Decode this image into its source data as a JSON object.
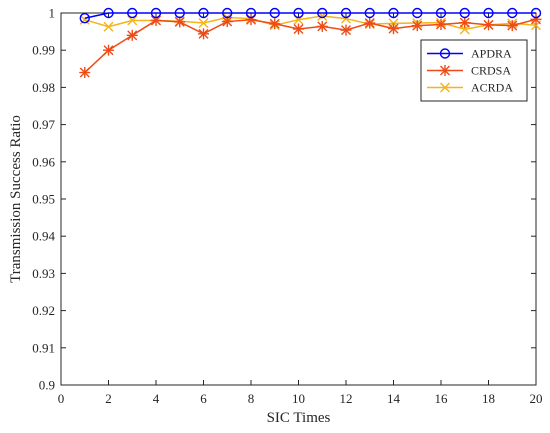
{
  "chart_data": {
    "type": "line",
    "xlabel": "SIC Times",
    "ylabel": "Transmission Success Ratio",
    "xlim": [
      0,
      20
    ],
    "ylim": [
      0.9,
      1.0
    ],
    "x_ticks": [
      0,
      2,
      4,
      6,
      8,
      10,
      12,
      14,
      16,
      18,
      20
    ],
    "x_tick_labels": [
      "0",
      "2",
      "4",
      "6",
      "8",
      "10",
      "12",
      "14",
      "16",
      "18",
      "20"
    ],
    "y_ticks": [
      0.9,
      0.91,
      0.92,
      0.93,
      0.94,
      0.95,
      0.96,
      0.97,
      0.98,
      0.99,
      1.0
    ],
    "y_tick_labels": [
      "0.9",
      "0.91",
      "0.92",
      "0.93",
      "0.94",
      "0.95",
      "0.96",
      "0.97",
      "0.98",
      "0.99",
      "1"
    ],
    "grid": false,
    "legend_position": "top-right",
    "x": [
      1,
      2,
      3,
      4,
      5,
      6,
      7,
      8,
      9,
      10,
      11,
      12,
      13,
      14,
      15,
      16,
      17,
      18,
      19,
      20
    ],
    "series": [
      {
        "name": "APDRA",
        "color": "#0000ff",
        "marker": "circle",
        "values": [
          0.9986,
          1.0,
          1.0,
          1.0,
          1.0,
          1.0,
          1.0,
          1.0,
          1.0,
          1.0,
          1.0,
          1.0,
          1.0,
          1.0,
          1.0,
          1.0,
          1.0,
          1.0,
          1.0,
          1.0
        ]
      },
      {
        "name": "CRDSA",
        "color": "#ee4b17",
        "marker": "asterisk",
        "values": [
          0.984,
          0.99,
          0.994,
          0.998,
          0.9976,
          0.9944,
          0.9977,
          0.9982,
          0.9971,
          0.9957,
          0.9964,
          0.9954,
          0.9973,
          0.9958,
          0.9966,
          0.9969,
          0.9974,
          0.9968,
          0.9966,
          0.9983
        ]
      },
      {
        "name": "ACRDA",
        "color": "#f4b41a",
        "marker": "x",
        "values": [
          0.9982,
          0.9963,
          0.998,
          0.998,
          0.9978,
          0.9973,
          0.9988,
          0.9985,
          0.9967,
          0.9982,
          0.9992,
          0.9985,
          0.997,
          0.9972,
          0.9973,
          0.9974,
          0.9956,
          0.9968,
          0.9972,
          0.9967
        ]
      }
    ]
  }
}
